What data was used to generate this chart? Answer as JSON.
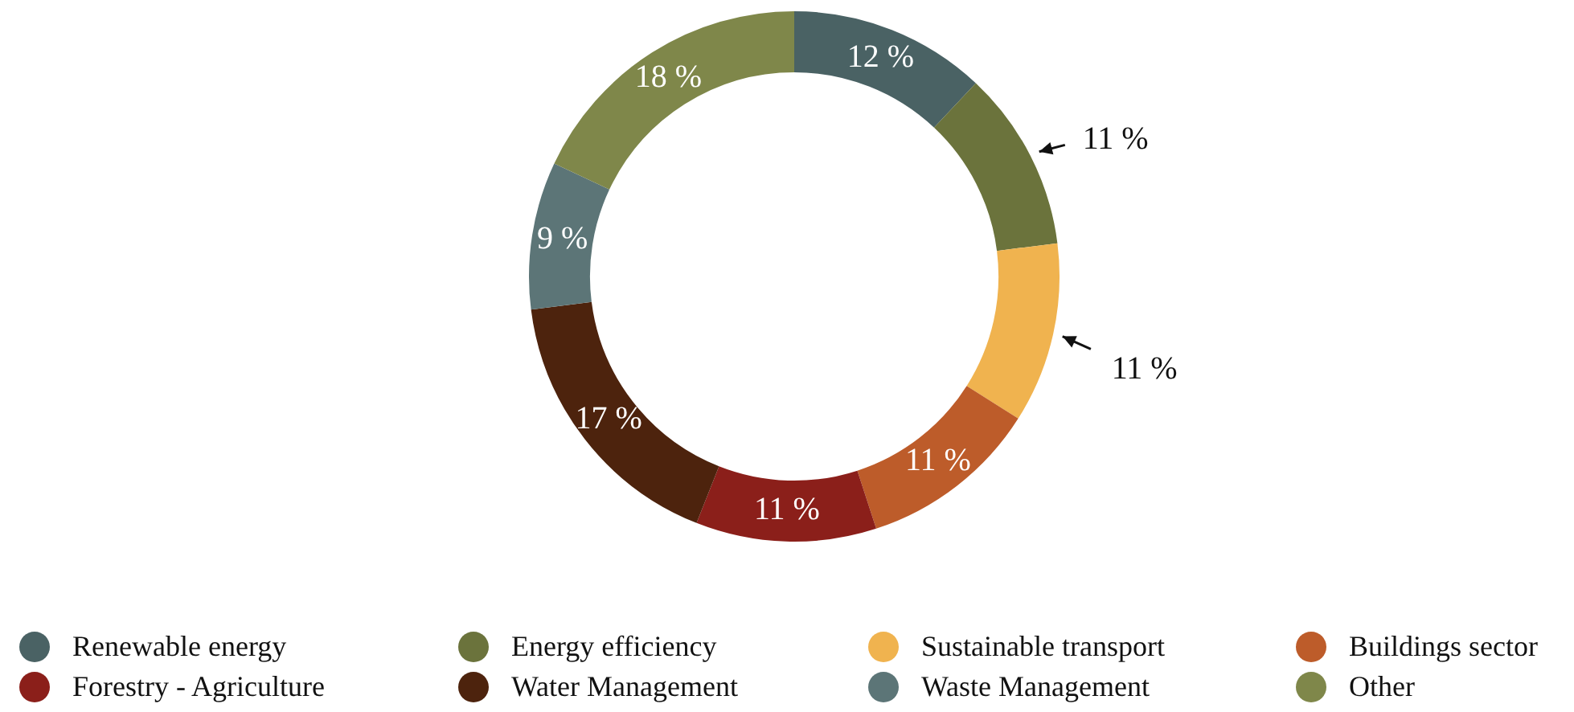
{
  "chart_data": {
    "type": "donut",
    "categories": [
      "Renewable energy",
      "Energy efficiency",
      "Sustainable transport",
      "Buildings sector",
      "Forestry - Agriculture",
      "Water Management",
      "Waste Management",
      "Other"
    ],
    "values": [
      12,
      11,
      11,
      11,
      11,
      17,
      9,
      18
    ],
    "colors": [
      "#4a6264",
      "#6b733c",
      "#f0b34f",
      "#bd5c2a",
      "#8b1f1a",
      "#4d230d",
      "#5c7577",
      "#7f874a"
    ],
    "value_labels": [
      "12 %",
      "11 %",
      "11 %",
      "11 %",
      "11 %",
      "17 %",
      "9 %",
      "18 %"
    ],
    "legend": "bottom"
  }
}
